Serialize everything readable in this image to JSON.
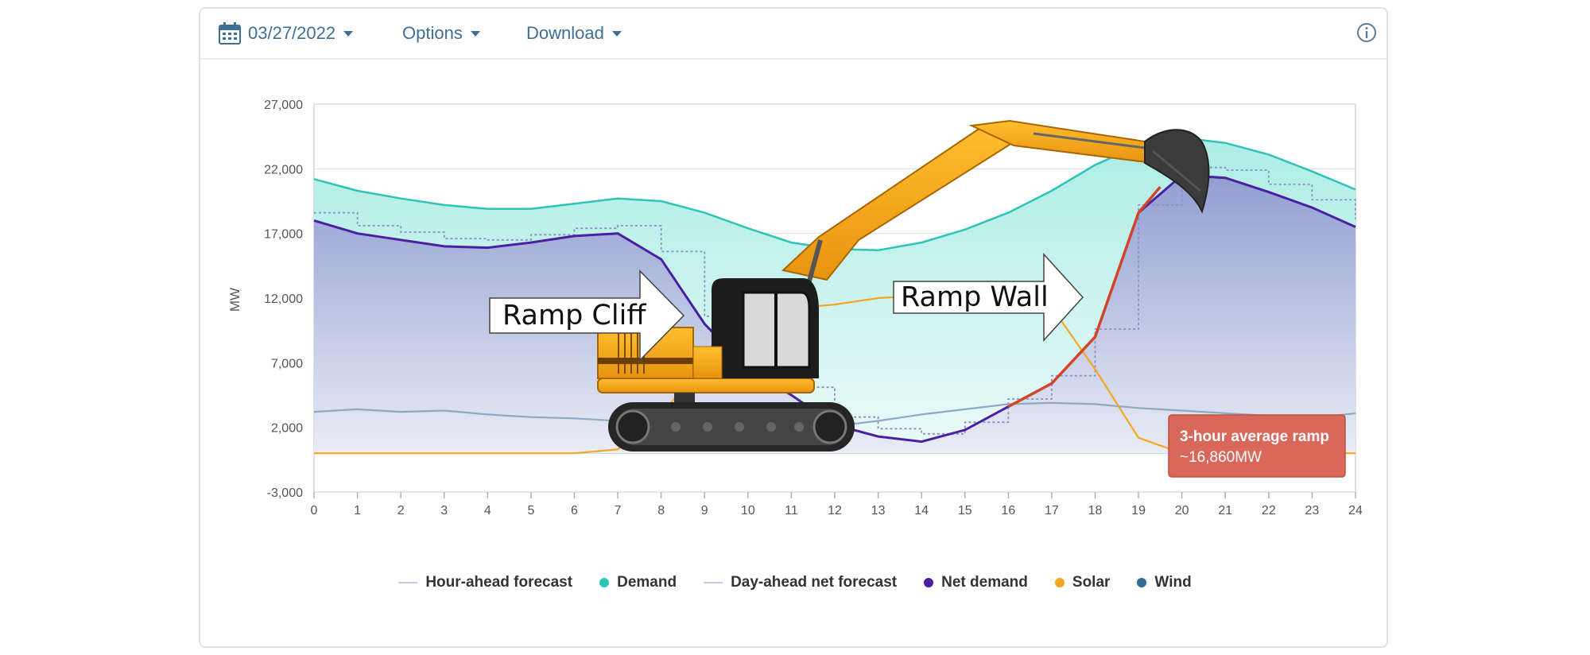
{
  "toolbar": {
    "date_label": "03/27/2022",
    "options_label": "Options",
    "download_label": "Download",
    "info_icon": "info-circle-icon"
  },
  "annotations": {
    "ramp_cliff": "Ramp Cliff",
    "ramp_wall": "Ramp Wall",
    "ramp_box_line1": "3-hour average ramp",
    "ramp_box_line2": "~16,860MW"
  },
  "colors": {
    "demand": "#2ec4b6",
    "net_demand": "#4b1fa3",
    "solar": "#f5a623",
    "wind": "#346d96",
    "ramp": "#d2452b",
    "forecast": "#b8c4e0"
  },
  "legend": [
    {
      "label": "Hour-ahead forecast",
      "marker": "line",
      "color": "#c4cde6"
    },
    {
      "label": "Demand",
      "marker": "dot",
      "color": "#2ec4b6"
    },
    {
      "label": "Day-ahead net forecast",
      "marker": "line",
      "color": "#c4cde6"
    },
    {
      "label": "Net demand",
      "marker": "dot",
      "color": "#4b1fa3"
    },
    {
      "label": "Solar",
      "marker": "dot",
      "color": "#f5a623"
    },
    {
      "label": "Wind",
      "marker": "dot",
      "color": "#346d96"
    }
  ],
  "chart_data": {
    "type": "line",
    "title": "",
    "xlabel": "",
    "ylabel": "MW",
    "xlim": [
      0,
      24
    ],
    "ylim": [
      -3000,
      27000
    ],
    "x_ticks": [
      0,
      1,
      2,
      3,
      4,
      5,
      6,
      7,
      8,
      9,
      10,
      11,
      12,
      13,
      14,
      15,
      16,
      17,
      18,
      19,
      20,
      21,
      22,
      23,
      24
    ],
    "y_ticks": [
      -3000,
      2000,
      7000,
      12000,
      17000,
      22000,
      27000
    ],
    "y_tick_labels": [
      "-3,000",
      "2,000",
      "7,000",
      "12,000",
      "17,000",
      "22,000",
      "27,000"
    ],
    "grid": true,
    "legend_position": "bottom",
    "series": [
      {
        "name": "Demand",
        "x": [
          0,
          1,
          2,
          3,
          4,
          5,
          6,
          7,
          8,
          9,
          10,
          11,
          12,
          13,
          14,
          15,
          16,
          17,
          18,
          19,
          20,
          21,
          22,
          23,
          24
        ],
        "values": [
          21200,
          20300,
          19700,
          19200,
          18900,
          18900,
          19300,
          19700,
          19500,
          18600,
          17400,
          16300,
          15800,
          15700,
          16300,
          17300,
          18600,
          20300,
          22300,
          23800,
          24400,
          24000,
          23100,
          21800,
          20400
        ]
      },
      {
        "name": "Net demand",
        "x": [
          0,
          1,
          2,
          3,
          4,
          5,
          6,
          7,
          8,
          9,
          10,
          11,
          12,
          13,
          14,
          15,
          16,
          17,
          18,
          19,
          20,
          21,
          22,
          23,
          24
        ],
        "values": [
          18000,
          17000,
          16500,
          16000,
          15900,
          16300,
          16800,
          17000,
          15000,
          10000,
          6500,
          4500,
          2200,
          1300,
          900,
          1800,
          3600,
          5400,
          9000,
          18600,
          21500,
          21300,
          20200,
          19000,
          17500
        ]
      },
      {
        "name": "Solar",
        "x": [
          0,
          1,
          2,
          3,
          4,
          5,
          6,
          7,
          8,
          9,
          10,
          11,
          12,
          13,
          14,
          15,
          16,
          17,
          18,
          19,
          20,
          21,
          22,
          23,
          24
        ],
        "values": [
          0,
          0,
          0,
          0,
          0,
          0,
          0,
          300,
          3000,
          7000,
          9500,
          11200,
          11500,
          12000,
          12200,
          12100,
          11800,
          11300,
          6500,
          1200,
          0,
          0,
          0,
          0,
          0
        ]
      },
      {
        "name": "Wind",
        "x": [
          0,
          1,
          2,
          3,
          4,
          5,
          6,
          7,
          8,
          9,
          10,
          11,
          12,
          13,
          14,
          15,
          16,
          17,
          18,
          19,
          20,
          21,
          22,
          23,
          24
        ],
        "values": [
          3200,
          3400,
          3200,
          3300,
          3000,
          2800,
          2700,
          2500,
          2500,
          2400,
          2200,
          2000,
          2100,
          2500,
          3000,
          3400,
          3800,
          3900,
          3800,
          3500,
          3300,
          3100,
          2900,
          2700,
          3100
        ]
      }
    ]
  }
}
